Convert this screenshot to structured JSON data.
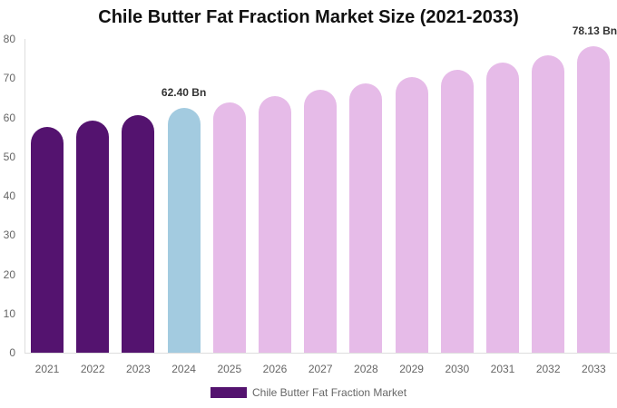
{
  "chart_data": {
    "type": "bar",
    "title": "Chile Butter Fat Fraction Market Size (2021-2033)",
    "xlabel": "",
    "ylabel": "",
    "ylim": [
      0,
      80
    ],
    "yticks": [
      0,
      10,
      20,
      30,
      40,
      50,
      60,
      70,
      80
    ],
    "grid": false,
    "legend_position": "bottom",
    "categories": [
      "2021",
      "2022",
      "2023",
      "2024",
      "2025",
      "2026",
      "2027",
      "2028",
      "2029",
      "2030",
      "2031",
      "2032",
      "2033"
    ],
    "series": [
      {
        "name": "Chile Butter Fat Fraction Market",
        "values": [
          57.6,
          59.2,
          60.6,
          62.4,
          63.8,
          65.4,
          67.1,
          68.7,
          70.3,
          72.1,
          74.0,
          75.8,
          78.13
        ]
      }
    ],
    "bar_colors": [
      "#54136f",
      "#54136f",
      "#54136f",
      "#a3cbe0",
      "#e6bbe8",
      "#e6bbe8",
      "#e6bbe8",
      "#e6bbe8",
      "#e6bbe8",
      "#e6bbe8",
      "#e6bbe8",
      "#e6bbe8",
      "#e6bbe8"
    ],
    "annotations": [
      {
        "category": "2024",
        "text": "62.40 Bn"
      },
      {
        "category": "2033",
        "text": "78.13 Bn"
      }
    ]
  },
  "legend": {
    "label": "Chile Butter Fat Fraction Market",
    "color": "#54136f"
  }
}
